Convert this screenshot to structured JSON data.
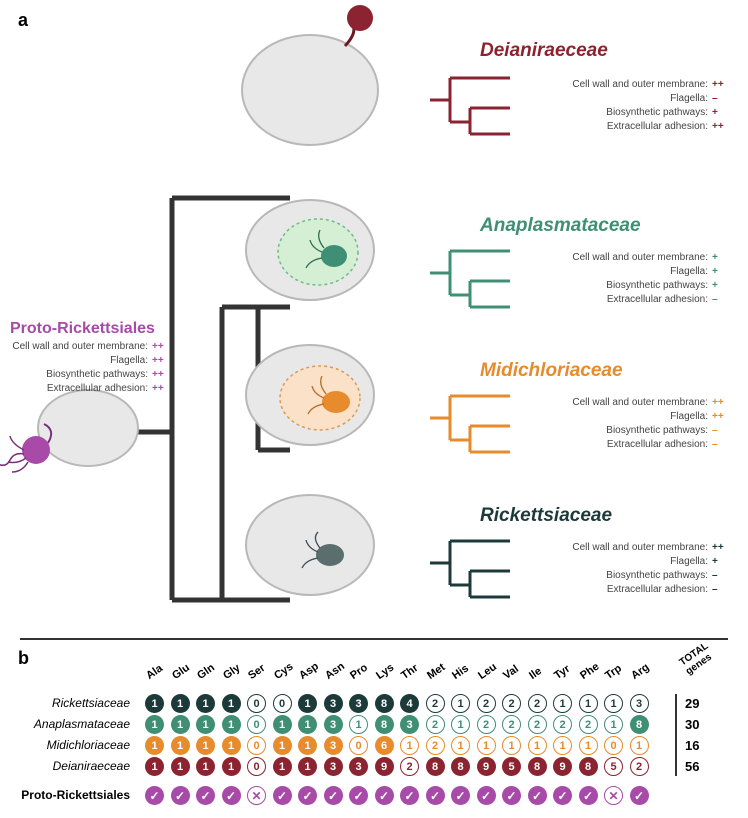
{
  "colors": {
    "proto": "#a84aa8",
    "deian": "#8b2330",
    "anapl": "#3f8f74",
    "midic": "#e78b2c",
    "ricke": "#1d3a3a",
    "tree": "#333333",
    "cell_outline": "#b8b8b8",
    "cell_fill": "#e8e8e8",
    "ana_vac_fill": "#d4efd4",
    "ana_vac_stroke": "#6fb98a",
    "midi_vac_fill": "#fbe1c7",
    "midi_vac_stroke": "#d99a56"
  },
  "panel_a_label": "a",
  "panel_b_label": "b",
  "proto": {
    "title": "Proto-Rickettsiales",
    "traits": [
      {
        "label": "Cell wall and outer membrane:",
        "val": "++"
      },
      {
        "label": "Flagella:",
        "val": "++"
      },
      {
        "label": "Biosynthetic pathways:",
        "val": "++"
      },
      {
        "label": "Extracellular adhesion:",
        "val": "++"
      }
    ]
  },
  "clades": [
    {
      "key": "deian",
      "title": "Deianiraeceae_fix",
      "title_text": "Deianiraeceae",
      "color": "#8b2330",
      "traits": [
        {
          "label": "Cell wall and outer membrane:",
          "val": "++"
        },
        {
          "label": "Flagella:",
          "val": "–"
        },
        {
          "label": "Biosynthetic pathways:",
          "val": "+"
        },
        {
          "label": "Extracellular adhesion:",
          "val": "++"
        }
      ]
    },
    {
      "key": "anapl",
      "title_text": "Anaplasmataceae",
      "color": "#3f8f74",
      "traits": [
        {
          "label": "Cell wall and outer membrane:",
          "val": "+"
        },
        {
          "label": "Flagella:",
          "val": "+"
        },
        {
          "label": "Biosynthetic pathways:",
          "val": "+"
        },
        {
          "label": "Extracellular adhesion:",
          "val": "–"
        }
      ]
    },
    {
      "key": "midic",
      "title_text": "Midichloriaceae",
      "color": "#e78b2c",
      "traits": [
        {
          "label": "Cell wall and outer membrane:",
          "val": "++"
        },
        {
          "label": "Flagella:",
          "val": "++"
        },
        {
          "label": "Biosynthetic pathways:",
          "val": "–"
        },
        {
          "label": "Extracellular adhesion:",
          "val": "–"
        }
      ]
    },
    {
      "key": "ricke",
      "title_text": "Rickettsiaceae",
      "color": "#1d3a3a",
      "traits": [
        {
          "label": "Cell wall and outer membrane:",
          "val": "++"
        },
        {
          "label": "Flagella:",
          "val": "+"
        },
        {
          "label": "Biosynthetic pathways:",
          "val": "–"
        },
        {
          "label": "Extracellular adhesion:",
          "val": "–"
        }
      ]
    }
  ],
  "amino_acids": [
    "Ala",
    "Glu",
    "Gln",
    "Gly",
    "Ser",
    "Cys",
    "Asp",
    "Asn",
    "Pro",
    "Lys",
    "Thr",
    "Met",
    "His",
    "Leu",
    "Val",
    "Ile",
    "Tyr",
    "Phe",
    "Trp",
    "Arg"
  ],
  "total_header": "TOTAL\ngenes",
  "b_rows": [
    {
      "name": "Rickettsiaceae",
      "color": "#1d3a3a",
      "counts": [
        1,
        1,
        1,
        1,
        0,
        0,
        1,
        3,
        3,
        8,
        4,
        2,
        1,
        2,
        2,
        2,
        1,
        1,
        1,
        3
      ],
      "filled": [
        1,
        1,
        1,
        1,
        0,
        0,
        1,
        1,
        1,
        1,
        1,
        0,
        0,
        0,
        0,
        0,
        0,
        0,
        0,
        0
      ],
      "total": 29
    },
    {
      "name": "Anaplasmataceae",
      "color": "#3f8f74",
      "counts": [
        1,
        1,
        1,
        1,
        0,
        1,
        1,
        3,
        1,
        8,
        3,
        2,
        1,
        2,
        2,
        2,
        2,
        2,
        1,
        8
      ],
      "filled": [
        1,
        1,
        1,
        1,
        0,
        1,
        1,
        1,
        0,
        1,
        1,
        0,
        0,
        0,
        0,
        0,
        0,
        0,
        0,
        1
      ],
      "total": 30
    },
    {
      "name": "Midichloriaceae",
      "color": "#e78b2c",
      "counts": [
        1,
        1,
        1,
        1,
        0,
        1,
        1,
        3,
        0,
        6,
        1,
        2,
        1,
        1,
        1,
        1,
        1,
        1,
        0,
        1
      ],
      "filled": [
        1,
        1,
        1,
        1,
        0,
        1,
        1,
        1,
        0,
        1,
        0,
        0,
        0,
        0,
        0,
        0,
        0,
        0,
        0,
        0
      ],
      "total": 16
    },
    {
      "name": "Deianiraeceae",
      "color": "#8b2330",
      "counts": [
        1,
        1,
        1,
        1,
        0,
        1,
        1,
        3,
        3,
        9,
        2,
        8,
        8,
        9,
        5,
        8,
        9,
        8,
        5,
        2
      ],
      "filled": [
        1,
        1,
        1,
        1,
        0,
        1,
        1,
        1,
        1,
        1,
        0,
        1,
        1,
        1,
        1,
        1,
        1,
        1,
        0,
        0
      ],
      "total": 56
    }
  ],
  "proto_row": {
    "name": "Proto-Rickettsiales",
    "color": "#a84aa8",
    "marks": [
      "✓",
      "✓",
      "✓",
      "✓",
      "✕",
      "✓",
      "✓",
      "✓",
      "✓",
      "✓",
      "✓",
      "✓",
      "✓",
      "✓",
      "✓",
      "✓",
      "✓",
      "✓",
      "✕",
      "✓"
    ]
  }
}
